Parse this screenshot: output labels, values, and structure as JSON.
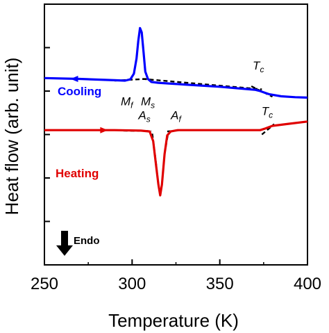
{
  "chart_data": {
    "type": "line",
    "xlabel": "Temperature (K)",
    "ylabel": "Heat flow (arb. unit)",
    "xlim": [
      250,
      400
    ],
    "xticks": [
      250,
      300,
      350,
      400
    ],
    "ylim": [
      0,
      6
    ],
    "yticks_count": 6,
    "grid": false,
    "series": [
      {
        "name": "Cooling",
        "color": "#0000ff",
        "arrow": "left",
        "x": [
          250,
          270,
          290,
          296,
          299,
          301,
          302.5,
          303.5,
          304.5,
          305.5,
          306.5,
          307.5,
          309,
          311,
          315,
          330,
          350,
          370,
          373,
          378,
          385,
          393,
          400
        ],
        "y": [
          4.3,
          4.28,
          4.25,
          4.24,
          4.27,
          4.4,
          4.75,
          5.15,
          5.45,
          5.35,
          4.9,
          4.45,
          4.28,
          4.21,
          4.19,
          4.15,
          4.1,
          4.03,
          4.0,
          3.93,
          3.88,
          3.86,
          3.85
        ]
      },
      {
        "name": "Heating",
        "color": "#e00000",
        "arrow": "right",
        "x": [
          250,
          270,
          290,
          305,
          310,
          312,
          313.5,
          315,
          316,
          317,
          318.5,
          320,
          322,
          326,
          340,
          360,
          373,
          376,
          380,
          390,
          400
        ],
        "y": [
          3.1,
          3.1,
          3.1,
          3.09,
          3.07,
          2.85,
          2.35,
          1.85,
          1.6,
          1.85,
          2.55,
          2.98,
          3.07,
          3.1,
          3.1,
          3.1,
          3.1,
          3.14,
          3.2,
          3.25,
          3.3
        ]
      }
    ],
    "fits": [
      {
        "x": [
          290,
          308
        ],
        "y": [
          4.24,
          4.28
        ]
      },
      {
        "x": [
          306,
          374
        ],
        "y": [
          4.28,
          4.04
        ]
      },
      {
        "x": [
          368,
          380
        ],
        "y": [
          4.11,
          3.87
        ]
      },
      {
        "x": [
          295,
          311
        ],
        "y": [
          3.09,
          3.08
        ]
      },
      {
        "x": [
          311.5,
          313.5,
          315,
          316,
          317,
          318.5,
          320.5
        ],
        "y": [
          3.02,
          2.4,
          1.85,
          1.6,
          1.85,
          2.55,
          3.02
        ]
      },
      {
        "x": [
          320,
          328
        ],
        "y": [
          3.07,
          3.1
        ]
      },
      {
        "x": [
          374,
          381
        ],
        "y": [
          3.0,
          3.24
        ]
      }
    ],
    "annotations": [
      {
        "main": "M",
        "sub": "f",
        "x": 297,
        "y": 3.67
      },
      {
        "main": "M",
        "sub": "s",
        "x": 309,
        "y": 3.67
      },
      {
        "main": "T",
        "sub": "c",
        "x": 372,
        "y": 4.5
      },
      {
        "main": "A",
        "sub": "s",
        "x": 307,
        "y": 3.35
      },
      {
        "main": "A",
        "sub": "f",
        "x": 325,
        "y": 3.35
      },
      {
        "main": "T",
        "sub": "c",
        "x": 377,
        "y": 3.45
      }
    ],
    "endo_label": "Endo"
  }
}
